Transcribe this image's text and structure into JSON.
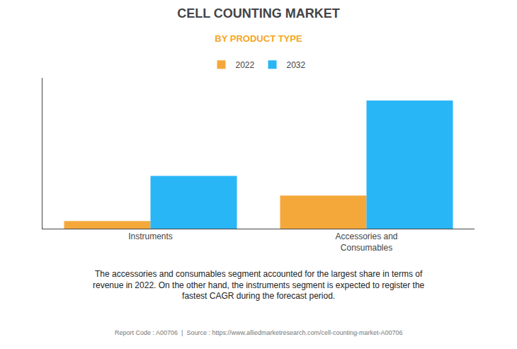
{
  "chart_data": {
    "type": "bar",
    "title": "CELL COUNTING MARKET",
    "subtitle": "BY PRODUCT TYPE",
    "categories": [
      "Instruments",
      "Accessories and\nConsumables"
    ],
    "series": [
      {
        "name": "2022",
        "color": "#F5A83A",
        "values": [
          0.5,
          2.2
        ]
      },
      {
        "name": "2032",
        "color": "#29B6F6",
        "values": [
          3.5,
          8.5
        ]
      }
    ],
    "ylim": [
      0,
      10
    ],
    "yticks": [],
    "grid": false,
    "legend": "top",
    "tick_labels": "x",
    "annotations": [
      "The accessories and consumables segment accounted for the largest share in terms of\nrevenue in 2022. On the other hand, the instruments segment is expected to register the\nfastest CAGR during the forecast period.",
      "Report Code : A00706  |  Source : https://www.alliedmarketresearch.com/cell-counting-market-A00706"
    ]
  }
}
